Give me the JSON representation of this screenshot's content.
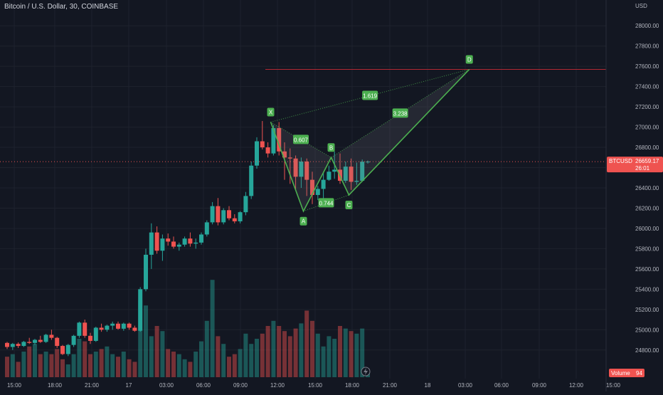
{
  "header": {
    "title": "Bitcoin / U.S. Dollar, 30, COINBASE"
  },
  "price_scale": {
    "currency": "USD",
    "last_label": "BTCUSD",
    "last_price": "26659.17",
    "countdown": "26:01",
    "volume_label": "Volume",
    "volume_value": "94"
  },
  "colors": {
    "background": "#131722",
    "up": "#26a69a",
    "down": "#ef5350",
    "pattern": "#4caf50",
    "target_line": "#b22833",
    "text": "#b2b5be"
  },
  "chart_data": {
    "type": "candlestick",
    "ylim": [
      24700,
      28100
    ],
    "y_ticks": [
      24800,
      25000,
      25200,
      25400,
      25600,
      25800,
      26000,
      26200,
      26400,
      26600,
      26800,
      27000,
      27200,
      27400,
      27600,
      27800,
      28000
    ],
    "x_tick_labels": [
      "15:00",
      "18:00",
      "21:00",
      "17",
      "03:00",
      "06:00",
      "09:00",
      "12:00",
      "15:00",
      "18:00",
      "21:00",
      "18",
      "03:00",
      "06:00",
      "09:00",
      "12:00",
      "15:00"
    ],
    "candles": [
      {
        "o": 24870,
        "h": 24880,
        "l": 24810,
        "c": 24830
      },
      {
        "o": 24830,
        "h": 24870,
        "l": 24800,
        "c": 24860
      },
      {
        "o": 24860,
        "h": 24875,
        "l": 24820,
        "c": 24840
      },
      {
        "o": 24840,
        "h": 24890,
        "l": 24830,
        "c": 24880
      },
      {
        "o": 24880,
        "h": 24920,
        "l": 24860,
        "c": 24870
      },
      {
        "o": 24870,
        "h": 24910,
        "l": 24850,
        "c": 24900
      },
      {
        "o": 24900,
        "h": 24940,
        "l": 24870,
        "c": 24880
      },
      {
        "o": 24880,
        "h": 24960,
        "l": 24870,
        "c": 24950
      },
      {
        "o": 24950,
        "h": 25000,
        "l": 24900,
        "c": 24920
      },
      {
        "o": 24920,
        "h": 24930,
        "l": 24820,
        "c": 24840
      },
      {
        "o": 24840,
        "h": 24850,
        "l": 24750,
        "c": 24760
      },
      {
        "o": 24760,
        "h": 24860,
        "l": 24740,
        "c": 24850
      },
      {
        "o": 24850,
        "h": 24950,
        "l": 24830,
        "c": 24940
      },
      {
        "o": 24940,
        "h": 25080,
        "l": 24920,
        "c": 25070
      },
      {
        "o": 25070,
        "h": 25100,
        "l": 24920,
        "c": 24940
      },
      {
        "o": 24940,
        "h": 24970,
        "l": 24860,
        "c": 24890
      },
      {
        "o": 24890,
        "h": 25030,
        "l": 24880,
        "c": 25020
      },
      {
        "o": 25020,
        "h": 25060,
        "l": 24980,
        "c": 25000
      },
      {
        "o": 25000,
        "h": 25050,
        "l": 24980,
        "c": 25040
      },
      {
        "o": 25040,
        "h": 25080,
        "l": 25000,
        "c": 25060
      },
      {
        "o": 25060,
        "h": 25080,
        "l": 25000,
        "c": 25010
      },
      {
        "o": 25010,
        "h": 25070,
        "l": 24990,
        "c": 25060
      },
      {
        "o": 25060,
        "h": 25070,
        "l": 25000,
        "c": 25020
      },
      {
        "o": 25020,
        "h": 25040,
        "l": 24980,
        "c": 24990
      },
      {
        "o": 24990,
        "h": 25420,
        "l": 24980,
        "c": 25400
      },
      {
        "o": 25400,
        "h": 25800,
        "l": 25380,
        "c": 25740
      },
      {
        "o": 25740,
        "h": 26050,
        "l": 25600,
        "c": 25960
      },
      {
        "o": 25960,
        "h": 26020,
        "l": 25750,
        "c": 25780
      },
      {
        "o": 25780,
        "h": 25940,
        "l": 25680,
        "c": 25900
      },
      {
        "o": 25900,
        "h": 25950,
        "l": 25830,
        "c": 25870
      },
      {
        "o": 25870,
        "h": 25920,
        "l": 25800,
        "c": 25820
      },
      {
        "o": 25820,
        "h": 25860,
        "l": 25780,
        "c": 25840
      },
      {
        "o": 25840,
        "h": 25920,
        "l": 25820,
        "c": 25900
      },
      {
        "o": 25900,
        "h": 25960,
        "l": 25820,
        "c": 25850
      },
      {
        "o": 25850,
        "h": 25900,
        "l": 25800,
        "c": 25860
      },
      {
        "o": 25860,
        "h": 25960,
        "l": 25840,
        "c": 25940
      },
      {
        "o": 25940,
        "h": 26080,
        "l": 25920,
        "c": 26060
      },
      {
        "o": 26060,
        "h": 26260,
        "l": 26040,
        "c": 26220
      },
      {
        "o": 26220,
        "h": 26300,
        "l": 26030,
        "c": 26060
      },
      {
        "o": 26060,
        "h": 26200,
        "l": 26040,
        "c": 26180
      },
      {
        "o": 26180,
        "h": 26220,
        "l": 26080,
        "c": 26100
      },
      {
        "o": 26100,
        "h": 26140,
        "l": 26050,
        "c": 26070
      },
      {
        "o": 26070,
        "h": 26170,
        "l": 26050,
        "c": 26160
      },
      {
        "o": 26160,
        "h": 26360,
        "l": 26130,
        "c": 26320
      },
      {
        "o": 26320,
        "h": 26660,
        "l": 26290,
        "c": 26620
      },
      {
        "o": 26620,
        "h": 26900,
        "l": 26590,
        "c": 26860
      },
      {
        "o": 26860,
        "h": 27060,
        "l": 26780,
        "c": 26800
      },
      {
        "o": 26800,
        "h": 26850,
        "l": 26700,
        "c": 26740
      },
      {
        "o": 26740,
        "h": 27020,
        "l": 26720,
        "c": 26990
      },
      {
        "o": 26990,
        "h": 27050,
        "l": 26720,
        "c": 26760
      },
      {
        "o": 26760,
        "h": 26850,
        "l": 26480,
        "c": 26700
      },
      {
        "o": 26700,
        "h": 26790,
        "l": 26440,
        "c": 26690
      },
      {
        "o": 26690,
        "h": 26720,
        "l": 26380,
        "c": 26510
      },
      {
        "o": 26510,
        "h": 26700,
        "l": 26400,
        "c": 26660
      },
      {
        "o": 26660,
        "h": 26690,
        "l": 26320,
        "c": 26480
      },
      {
        "o": 26480,
        "h": 26560,
        "l": 26240,
        "c": 26330
      },
      {
        "o": 26330,
        "h": 26420,
        "l": 26280,
        "c": 26390
      },
      {
        "o": 26390,
        "h": 26560,
        "l": 26290,
        "c": 26480
      },
      {
        "o": 26480,
        "h": 26620,
        "l": 26470,
        "c": 26560
      },
      {
        "o": 26560,
        "h": 26760,
        "l": 26490,
        "c": 26580
      },
      {
        "o": 26580,
        "h": 26740,
        "l": 26440,
        "c": 26470
      },
      {
        "o": 26470,
        "h": 26660,
        "l": 26450,
        "c": 26610
      },
      {
        "o": 26610,
        "h": 26690,
        "l": 26380,
        "c": 26460
      },
      {
        "o": 26460,
        "h": 26650,
        "l": 26430,
        "c": 26470
      },
      {
        "o": 26470,
        "h": 26680,
        "l": 26460,
        "c": 26659
      },
      {
        "o": 26659,
        "h": 26670,
        "l": 26640,
        "c": 26659.17
      }
    ],
    "volume": [
      8,
      9,
      6,
      10,
      12,
      13,
      9,
      10,
      9,
      11,
      7,
      5,
      9,
      15,
      14,
      9,
      10,
      11,
      12,
      9,
      8,
      10,
      7,
      6,
      30,
      28,
      16,
      20,
      18,
      11,
      10,
      9,
      7,
      6,
      10,
      14,
      22,
      38,
      16,
      13,
      8,
      9,
      11,
      17,
      13,
      15,
      17,
      20,
      22,
      20,
      18,
      16,
      19,
      21,
      26,
      22,
      17,
      12,
      16,
      15,
      20,
      19,
      18,
      17,
      19,
      3
    ],
    "harmonic_pattern": {
      "type": "cypher",
      "points": [
        {
          "label": "X",
          "price": 27050,
          "bar": 47.5
        },
        {
          "label": "A",
          "price": 26170,
          "bar": 53.4
        },
        {
          "label": "B",
          "price": 26700,
          "bar": 58.4
        },
        {
          "label": "C",
          "price": 26330,
          "bar": 61.6
        },
        {
          "label": "D",
          "price": 27570,
          "bar": 83.3
        }
      ],
      "ratios": [
        {
          "label": "0.607",
          "from": "X",
          "to": "B"
        },
        {
          "label": "0.744",
          "from": "A",
          "to": "C"
        },
        {
          "label": "1.619",
          "from": "X",
          "to": "D"
        },
        {
          "label": "3.238",
          "from": "B",
          "to": "D"
        }
      ],
      "target_price": 27570
    }
  }
}
